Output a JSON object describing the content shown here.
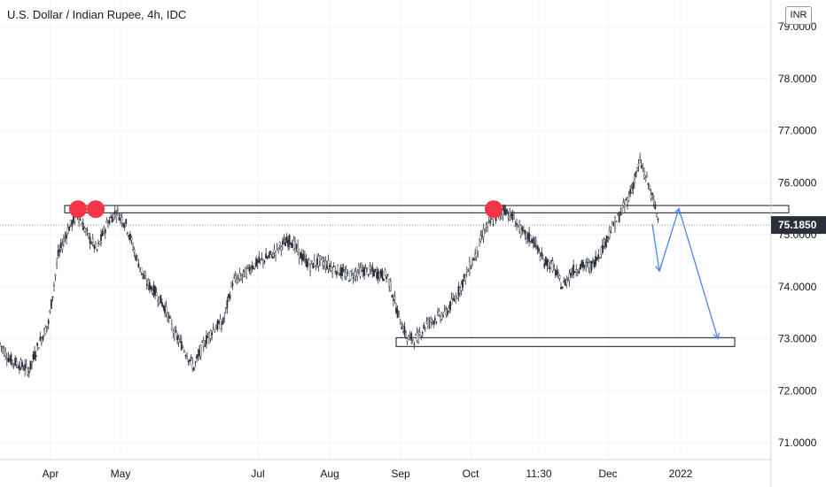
{
  "chart_data": {
    "type": "line",
    "title": "U.S. Dollar / Indian Rupee, 4h, IDC",
    "currency": "INR",
    "ylim": [
      70.55,
      79.3
    ],
    "y_ticks": [
      "71.0000",
      "72.0000",
      "73.0000",
      "74.0000",
      "75.0000",
      "76.0000",
      "77.0000",
      "78.0000",
      "79.0000"
    ],
    "x_ticks": [
      "Apr",
      "May",
      "Jul",
      "Aug",
      "Sep",
      "Oct",
      "11:30",
      "Dec",
      "2022"
    ],
    "last_price": "75.1850",
    "series": [
      {
        "x": [
          "Mar",
          "Mar",
          "Mar",
          "Mar",
          "Apr",
          "Apr",
          "Apr",
          "Apr",
          "Apr",
          "Apr",
          "Apr",
          "Apr",
          "Apr",
          "Apr",
          "Apr",
          "May",
          "May",
          "May",
          "May",
          "May",
          "May",
          "May",
          "Jun",
          "Jun",
          "Jun",
          "Jun",
          "Jun",
          "Jul",
          "Jul",
          "Jul",
          "Jul",
          "Jul",
          "Jul",
          "Jul",
          "Aug",
          "Aug",
          "Aug",
          "Aug",
          "Aug",
          "Aug",
          "Aug",
          "Sep",
          "Sep",
          "Sep",
          "Sep",
          "Sep",
          "Sep",
          "Oct",
          "Oct",
          "Oct",
          "Oct",
          "Oct",
          "Oct",
          "Oct",
          "Oct",
          "Nov",
          "Nov",
          "Nov",
          "Nov",
          "Nov",
          "Nov",
          "Nov",
          "Dec",
          "Dec",
          "Dec",
          "Dec",
          "Dec",
          "Dec",
          "Dec"
        ],
        "close": [
          72.9,
          72.6,
          72.5,
          72.4,
          72.9,
          73.3,
          74.6,
          75.1,
          75.4,
          75.0,
          74.7,
          75.2,
          75.45,
          75.2,
          74.6,
          74.1,
          73.9,
          73.6,
          73.1,
          72.8,
          72.45,
          72.9,
          73.2,
          73.3,
          74.1,
          74.2,
          74.4,
          74.5,
          74.6,
          74.8,
          74.9,
          74.6,
          74.4,
          74.5,
          74.4,
          74.3,
          74.2,
          74.3,
          74.3,
          74.25,
          74.2,
          73.5,
          73.0,
          73.0,
          73.3,
          73.4,
          73.5,
          73.8,
          74.2,
          74.6,
          75.1,
          75.3,
          75.5,
          75.3,
          75.0,
          74.9,
          74.5,
          74.4,
          74.0,
          74.3,
          74.4,
          74.4,
          74.7,
          75.1,
          75.4,
          75.8,
          76.4,
          75.9,
          75.2
        ]
      }
    ],
    "resistance_zone": [
      75.42,
      75.56
    ],
    "support_zone": [
      72.85,
      73.02
    ],
    "projection": [
      75.2,
      74.3,
      75.5,
      73.0
    ]
  }
}
